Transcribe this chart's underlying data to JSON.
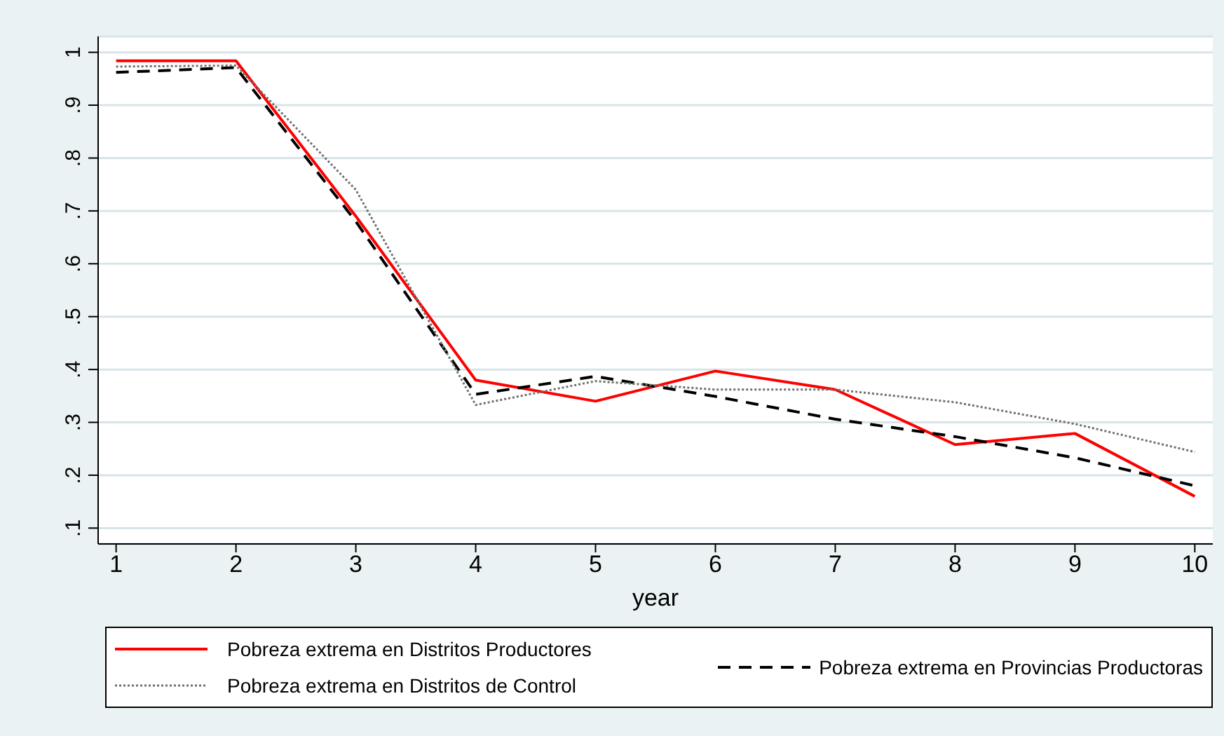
{
  "chart_data": {
    "type": "line",
    "xlabel": "year",
    "x": [
      1,
      2,
      3,
      4,
      5,
      6,
      7,
      8,
      9,
      10
    ],
    "series": [
      {
        "name": "Pobreza extrema en Distritos Productores",
        "color": "#ff0000",
        "line_style": "solid",
        "values": [
          0.984,
          0.984,
          0.69,
          0.38,
          0.34,
          0.397,
          0.362,
          0.258,
          0.279,
          0.16
        ]
      },
      {
        "name": "Pobreza extrema en Provincias Productoras",
        "color": "#000000",
        "line_style": "dashed",
        "values": [
          0.962,
          0.971,
          0.68,
          0.353,
          0.387,
          0.349,
          0.306,
          0.273,
          0.233,
          0.18
        ]
      },
      {
        "name": "Pobreza extrema en Distritos de Control",
        "color": "#707070",
        "line_style": "dotted",
        "values": [
          0.973,
          0.975,
          0.74,
          0.333,
          0.378,
          0.362,
          0.362,
          0.338,
          0.297,
          0.244
        ]
      }
    ],
    "xlim": [
      0.85,
      10.15
    ],
    "xticks": [
      1,
      2,
      3,
      4,
      5,
      6,
      7,
      8,
      9,
      10
    ],
    "ylim": [
      0.07,
      1.03
    ],
    "yticks": [
      {
        "value": 0.1,
        "label": ".1"
      },
      {
        "value": 0.2,
        "label": ".2"
      },
      {
        "value": 0.3,
        "label": ".3"
      },
      {
        "value": 0.4,
        "label": ".4"
      },
      {
        "value": 0.5,
        "label": ".5"
      },
      {
        "value": 0.6,
        "label": ".6"
      },
      {
        "value": 0.7,
        "label": ".7"
      },
      {
        "value": 0.8,
        "label": ".8"
      },
      {
        "value": 0.9,
        "label": ".9"
      },
      1
    ],
    "grid": "y",
    "legend": "bottom",
    "marker": "none"
  }
}
